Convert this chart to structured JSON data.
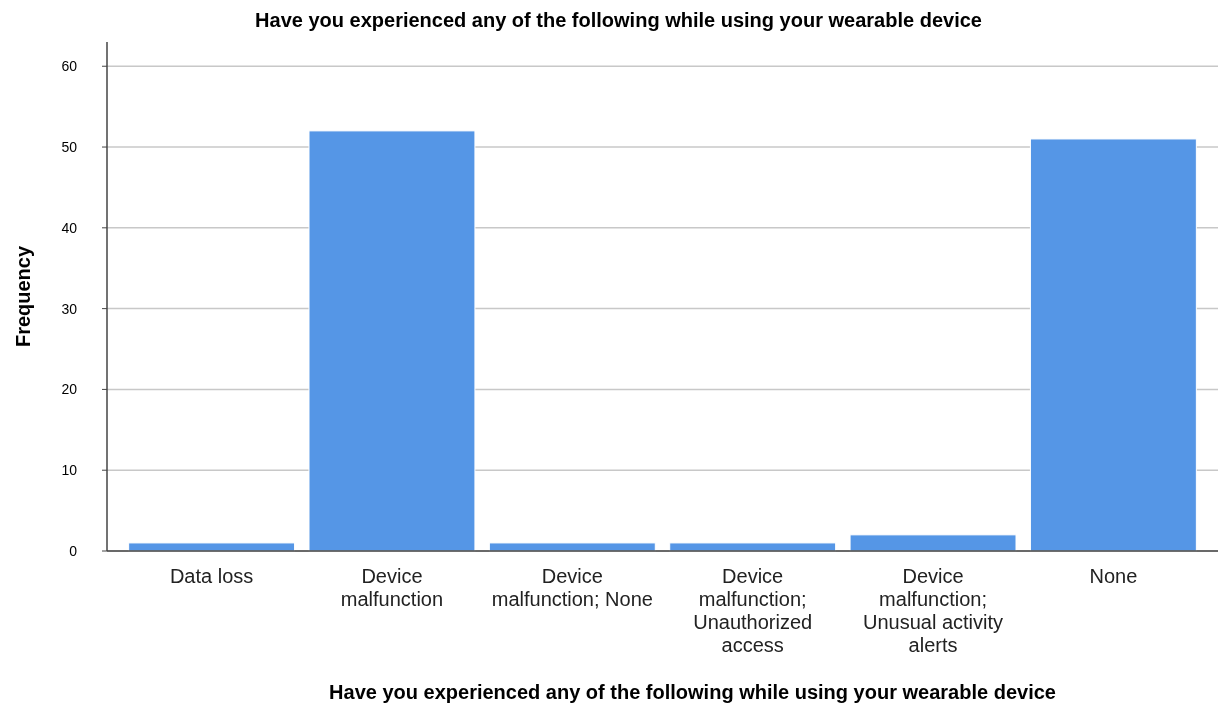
{
  "chart_data": {
    "type": "bar",
    "title": "Have you experienced any of the following while using your wearable device",
    "xlabel": "Have you experienced any of the following while using your wearable device",
    "ylabel": "Frequency",
    "categories": [
      "Data loss",
      "Device malfunction",
      "Device malfunction; None",
      "Device malfunction; Unauthorized access",
      "Device malfunction; Unusual activity alerts",
      "None"
    ],
    "values": [
      1,
      52,
      1,
      1,
      2,
      51
    ],
    "color": "#5596e6",
    "ylim": [
      0,
      63
    ],
    "yticks": [
      0,
      10,
      20,
      30,
      40,
      50,
      60
    ],
    "grid": "y"
  }
}
